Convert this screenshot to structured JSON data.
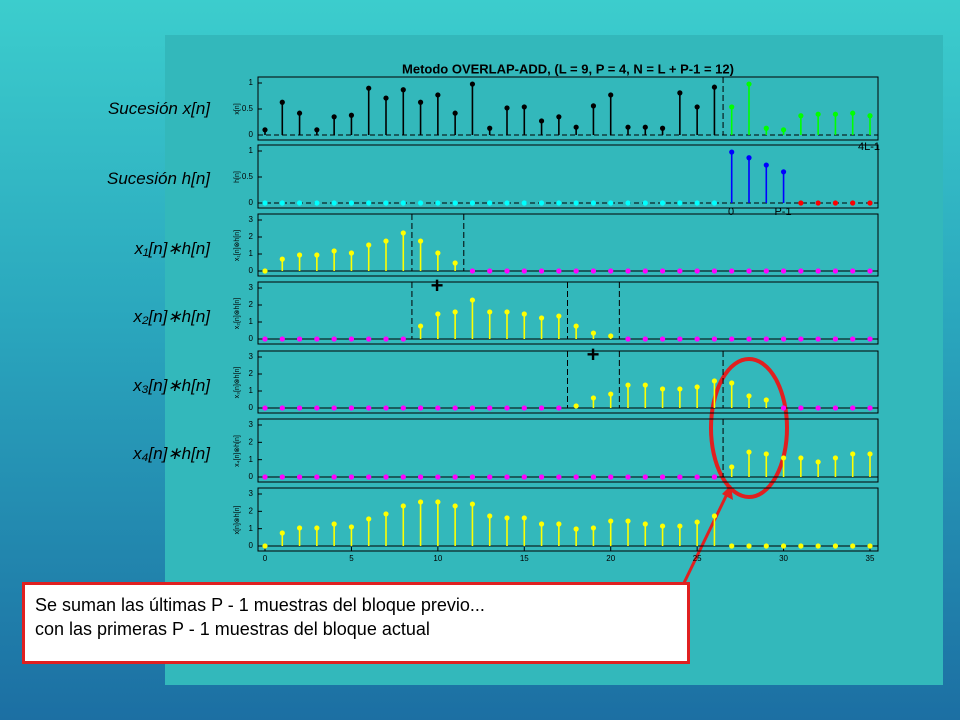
{
  "title": "Metodo OVERLAP-ADD, (L = 9, P = 4, N = L + P-1 = 12)",
  "row_labels": [
    "Sucesión x[n]",
    "Sucesión h[n]",
    "x₁[n]∗h[n]",
    "x₂[n]∗h[n]",
    "x₃[n]∗h[n]",
    "x₄[n]∗h[n]"
  ],
  "annotations": {
    "last_index": "4L-1",
    "h_start": "0",
    "h_end": "P-1",
    "plus_1": "+",
    "plus_2": "+"
  },
  "note": [
    "Se suman las últimas P - 1 muestras del bloque previo...",
    "con las primeras  P - 1 muestras del bloque actual"
  ],
  "chart_data": [
    {
      "type": "stem",
      "ylabel": "x[n]",
      "xlim": [
        0,
        35
      ],
      "ylim": [
        0,
        1
      ],
      "yticks": [
        0,
        0.5,
        1
      ],
      "dividers": [
        26.5
      ],
      "x": [
        0,
        1,
        2,
        3,
        4,
        5,
        6,
        7,
        8,
        9,
        10,
        11,
        12,
        13,
        14,
        15,
        16,
        17,
        18,
        19,
        20,
        21,
        22,
        23,
        24,
        25,
        26,
        27,
        28,
        29,
        30,
        31,
        32,
        33,
        34,
        35
      ],
      "series": [
        {
          "color": "#000000",
          "values": [
            0.1,
            0.63,
            0.42,
            0.1,
            0.35,
            0.38,
            0.9,
            0.71,
            0.87,
            0.63,
            0.77,
            0.42,
            0.98,
            0.13,
            0.52,
            0.54,
            0.27,
            0.35,
            0.15,
            0.56,
            0.77,
            0.15,
            0.15,
            0.13,
            0.81,
            0.54,
            0.92,
            null,
            null,
            null,
            null,
            null,
            null,
            null,
            null,
            null
          ]
        },
        {
          "color": "#00ff00",
          "values": [
            null,
            null,
            null,
            null,
            null,
            null,
            null,
            null,
            null,
            null,
            null,
            null,
            null,
            null,
            null,
            null,
            null,
            null,
            null,
            null,
            null,
            null,
            null,
            null,
            null,
            null,
            null,
            0.54,
            0.98,
            0.13,
            0.1,
            0.37,
            0.4,
            0.4,
            0.42,
            0.37
          ]
        }
      ]
    },
    {
      "type": "stem",
      "ylabel": "h[n]",
      "xlim": [
        0,
        35
      ],
      "ylim": [
        0,
        1
      ],
      "yticks": [
        0,
        0.5,
        1
      ],
      "dividers": [],
      "x": [
        0,
        1,
        2,
        3,
        4,
        5,
        6,
        7,
        8,
        9,
        10,
        11,
        12,
        13,
        14,
        15,
        16,
        17,
        18,
        19,
        20,
        21,
        22,
        23,
        24,
        25,
        26,
        27,
        28,
        29,
        30,
        31,
        32,
        33,
        34,
        35
      ],
      "series": [
        {
          "color": "#00ffff",
          "values": [
            0,
            0,
            0,
            0,
            0,
            0,
            0,
            0,
            0,
            0,
            0,
            0,
            0,
            0,
            0,
            0,
            0,
            0,
            0,
            0,
            0,
            0,
            0,
            0,
            0,
            0,
            0,
            null,
            null,
            null,
            null,
            null,
            null,
            null,
            null,
            null
          ]
        },
        {
          "color": "#0000ff",
          "values": [
            null,
            null,
            null,
            null,
            null,
            null,
            null,
            null,
            null,
            null,
            null,
            null,
            null,
            null,
            null,
            null,
            null,
            null,
            null,
            null,
            null,
            null,
            null,
            null,
            null,
            null,
            null,
            0.98,
            0.87,
            0.73,
            0.6,
            null,
            null,
            null,
            null,
            null
          ]
        },
        {
          "color": "#ff0000",
          "values": [
            null,
            null,
            null,
            null,
            null,
            null,
            null,
            null,
            null,
            null,
            null,
            null,
            null,
            null,
            null,
            null,
            null,
            null,
            null,
            null,
            null,
            null,
            null,
            null,
            null,
            null,
            null,
            null,
            null,
            null,
            null,
            0,
            0,
            0,
            0,
            0
          ]
        }
      ]
    },
    {
      "type": "stem",
      "ylabel": "x₁[n]⊗h[n]",
      "xlim": [
        0,
        35
      ],
      "ylim": [
        0,
        3
      ],
      "yticks": [
        0,
        1,
        2,
        3
      ],
      "dividers": [
        8.5,
        11.5
      ],
      "x": [
        0,
        1,
        2,
        3,
        4,
        5,
        6,
        7,
        8,
        9,
        10,
        11,
        12,
        13,
        14,
        15,
        16,
        17,
        18,
        19,
        20,
        21,
        22,
        23,
        24,
        25,
        26,
        27,
        28,
        29,
        30,
        31,
        32,
        33,
        34,
        35
      ],
      "series": [
        {
          "color": "#ffff00",
          "values": [
            0,
            0.7,
            0.94,
            0.94,
            1.18,
            1.06,
            1.53,
            1.76,
            2.24,
            1.76,
            1.06,
            0.47,
            null,
            null,
            null,
            null,
            null,
            null,
            null,
            null,
            null,
            null,
            null,
            null,
            null,
            null,
            null,
            null,
            null,
            null,
            null,
            null,
            null,
            null,
            null,
            null
          ]
        },
        {
          "color": "#ff00ff",
          "values": [
            null,
            null,
            null,
            null,
            null,
            null,
            null,
            null,
            null,
            null,
            null,
            null,
            0,
            0,
            0,
            0,
            0,
            0,
            0,
            0,
            0,
            0,
            0,
            0,
            0,
            0,
            0,
            0,
            0,
            0,
            0,
            0,
            0,
            0,
            0,
            0
          ]
        }
      ]
    },
    {
      "type": "stem",
      "ylabel": "x₂[n]⊗h[n]",
      "xlim": [
        0,
        35
      ],
      "ylim": [
        0,
        3
      ],
      "yticks": [
        0,
        1,
        2,
        3
      ],
      "dividers": [
        8.5,
        17.5,
        20.5
      ],
      "x": [
        0,
        1,
        2,
        3,
        4,
        5,
        6,
        7,
        8,
        9,
        10,
        11,
        12,
        13,
        14,
        15,
        16,
        17,
        18,
        19,
        20,
        21,
        22,
        23,
        24,
        25,
        26,
        27,
        28,
        29,
        30,
        31,
        32,
        33,
        34,
        35
      ],
      "series": [
        {
          "color": "#ffff00",
          "values": [
            null,
            null,
            null,
            null,
            null,
            null,
            null,
            null,
            null,
            0.76,
            1.47,
            1.59,
            2.29,
            1.59,
            1.59,
            1.47,
            1.24,
            1.35,
            0.76,
            0.35,
            0.18,
            null,
            null,
            null,
            null,
            null,
            null,
            null,
            null,
            null,
            null,
            null,
            null,
            null,
            null,
            null
          ]
        },
        {
          "color": "#ff00ff",
          "values": [
            0,
            0,
            0,
            0,
            0,
            0,
            0,
            0,
            0,
            null,
            null,
            null,
            null,
            null,
            null,
            null,
            null,
            null,
            null,
            null,
            null,
            0,
            0,
            0,
            0,
            0,
            0,
            0,
            0,
            0,
            0,
            0,
            0,
            0,
            0,
            0
          ]
        }
      ]
    },
    {
      "type": "stem",
      "ylabel": "x₃[n]⊗h[n]",
      "xlim": [
        0,
        35
      ],
      "ylim": [
        0,
        3
      ],
      "yticks": [
        0,
        1,
        2,
        3
      ],
      "dividers": [
        17.5,
        20.5,
        26.5
      ],
      "x": [
        0,
        1,
        2,
        3,
        4,
        5,
        6,
        7,
        8,
        9,
        10,
        11,
        12,
        13,
        14,
        15,
        16,
        17,
        18,
        19,
        20,
        21,
        22,
        23,
        24,
        25,
        26,
        27,
        28,
        29,
        30,
        31,
        32,
        33,
        34,
        35
      ],
      "series": [
        {
          "color": "#ffff00",
          "values": [
            null,
            null,
            null,
            null,
            null,
            null,
            null,
            null,
            null,
            null,
            null,
            null,
            null,
            null,
            null,
            null,
            null,
            null,
            0.12,
            0.59,
            0.82,
            1.35,
            1.35,
            1.12,
            1.12,
            1.24,
            1.59,
            1.47,
            0.71,
            0.47,
            null,
            null,
            null,
            null,
            null,
            null
          ]
        },
        {
          "color": "#ff00ff",
          "values": [
            0,
            0,
            0,
            0,
            0,
            0,
            0,
            0,
            0,
            0,
            0,
            0,
            0,
            0,
            0,
            0,
            0,
            0,
            null,
            null,
            null,
            null,
            null,
            null,
            null,
            null,
            null,
            null,
            null,
            null,
            0,
            0,
            0,
            0,
            0,
            0
          ]
        }
      ]
    },
    {
      "type": "stem",
      "ylabel": "x₄[n]⊗h[n]",
      "xlim": [
        0,
        35
      ],
      "ylim": [
        0,
        3
      ],
      "yticks": [
        0,
        1,
        2,
        3
      ],
      "dividers": [
        26.5
      ],
      "x": [
        0,
        1,
        2,
        3,
        4,
        5,
        6,
        7,
        8,
        9,
        10,
        11,
        12,
        13,
        14,
        15,
        16,
        17,
        18,
        19,
        20,
        21,
        22,
        23,
        24,
        25,
        26,
        27,
        28,
        29,
        30,
        31,
        32,
        33,
        34,
        35
      ],
      "series": [
        {
          "color": "#ffff00",
          "values": [
            null,
            null,
            null,
            null,
            null,
            null,
            null,
            null,
            null,
            null,
            null,
            null,
            null,
            null,
            null,
            null,
            null,
            null,
            null,
            null,
            null,
            null,
            null,
            null,
            null,
            null,
            null,
            0.58,
            1.44,
            1.33,
            1.1,
            1.1,
            0.87,
            1.1,
            1.33,
            1.33
          ]
        },
        {
          "color": "#ff00ff",
          "values": [
            0,
            0,
            0,
            0,
            0,
            0,
            0,
            0,
            0,
            0,
            0,
            0,
            0,
            0,
            0,
            0,
            0,
            0,
            0,
            0,
            0,
            0,
            0,
            0,
            0,
            0,
            0,
            null,
            null,
            null,
            null,
            null,
            null,
            null,
            null,
            null
          ]
        }
      ]
    },
    {
      "type": "stem",
      "ylabel": "x[n]⊗h[n]",
      "xlim": [
        0,
        35
      ],
      "ylim": [
        0,
        3
      ],
      "yticks": [
        0,
        1,
        2,
        3
      ],
      "xticks": [
        0,
        5,
        10,
        15,
        20,
        25,
        30,
        35
      ],
      "dividers": [],
      "x": [
        0,
        1,
        2,
        3,
        4,
        5,
        6,
        7,
        8,
        9,
        10,
        11,
        12,
        13,
        14,
        15,
        16,
        17,
        18,
        19,
        20,
        21,
        22,
        23,
        24,
        25,
        26,
        27,
        28,
        29,
        30,
        31,
        32,
        33,
        34,
        35
      ],
      "series": [
        {
          "color": "#ffff00",
          "values": [
            0,
            0.75,
            1.04,
            1.04,
            1.27,
            1.1,
            1.56,
            1.85,
            2.31,
            2.54,
            2.54,
            2.31,
            2.42,
            1.73,
            1.62,
            1.62,
            1.27,
            1.27,
            0.98,
            1.04,
            1.44,
            1.44,
            1.27,
            1.15,
            1.15,
            1.38,
            1.73,
            0,
            0,
            0,
            0,
            0,
            0,
            0,
            0,
            0
          ]
        }
      ]
    }
  ]
}
